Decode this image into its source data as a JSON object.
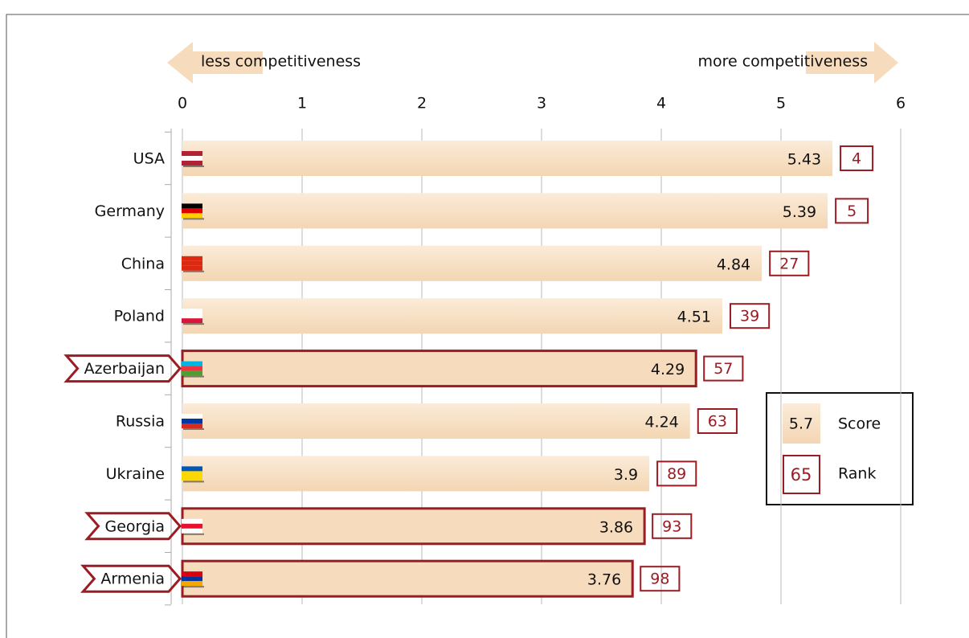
{
  "chart_data": {
    "type": "bar",
    "orientation": "horizontal",
    "direction_labels": {
      "left": "less competitiveness",
      "right": "more competitiveness"
    },
    "categories": [
      "USA",
      "Germany",
      "China",
      "Poland",
      "Azerbaijan",
      "Russia",
      "Ukraine",
      "Georgia",
      "Armenia"
    ],
    "values": [
      5.43,
      5.39,
      4.84,
      4.51,
      4.29,
      4.24,
      3.9,
      3.86,
      3.76
    ],
    "ranks": [
      4,
      5,
      27,
      39,
      57,
      63,
      89,
      93,
      98
    ],
    "highlight": [
      false,
      false,
      false,
      false,
      true,
      false,
      false,
      true,
      true
    ],
    "color": "#f6dcbc",
    "highlight_color": "#9b1c22",
    "xlim": [
      0,
      6
    ],
    "xticks": [
      0,
      1,
      2,
      3,
      4,
      5,
      6
    ],
    "grid": true,
    "legend": {
      "score_sample": "5.7",
      "score_label": "Score",
      "rank_sample": "65",
      "rank_label": "Rank"
    }
  }
}
